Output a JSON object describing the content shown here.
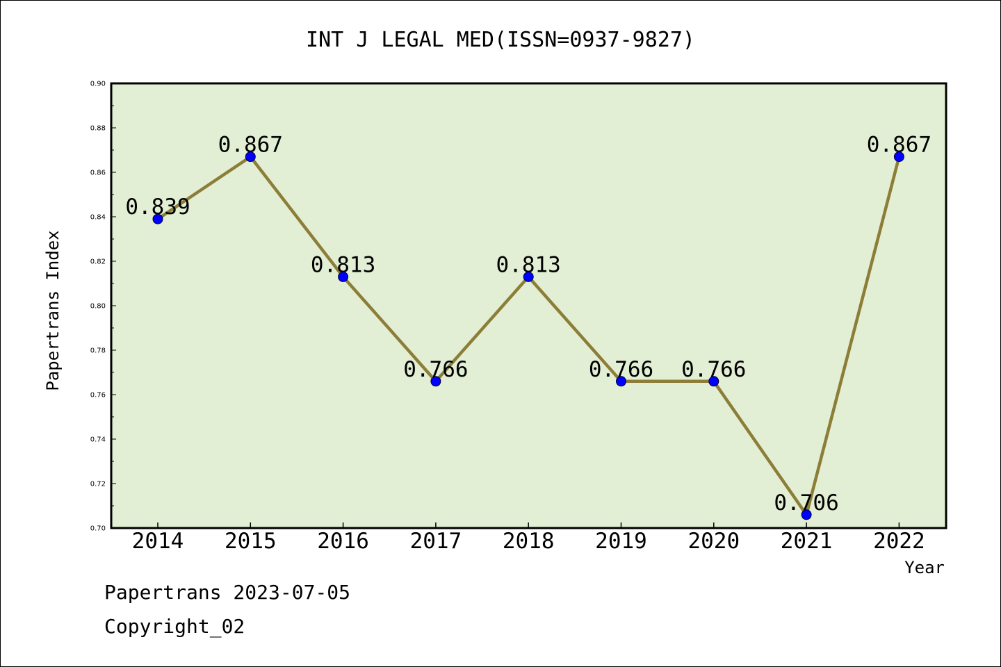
{
  "chart_data": {
    "type": "line",
    "title": "INT J LEGAL MED(ISSN=0937-9827)",
    "xlabel": "Year",
    "ylabel": "Papertrans Index",
    "categories": [
      "2014",
      "2015",
      "2016",
      "2017",
      "2018",
      "2019",
      "2020",
      "2021",
      "2022"
    ],
    "series": [
      {
        "values": [
          0.839,
          0.867,
          0.813,
          0.766,
          0.813,
          0.766,
          0.766,
          0.706,
          0.867
        ]
      }
    ],
    "data_labels": [
      "0.839",
      "0.867",
      "0.813",
      "0.766",
      "0.813",
      "0.766",
      "0.766",
      "0.706",
      "0.867"
    ],
    "ylim": [
      0.7,
      0.9
    ],
    "yticks": [
      "0.70",
      "0.72",
      "0.74",
      "0.76",
      "0.78",
      "0.80",
      "0.82",
      "0.84",
      "0.86",
      "0.88",
      "0.90"
    ],
    "grid": false,
    "legend": "none",
    "colors": {
      "plot_background": "#e2efd5",
      "line": "#8c7d37",
      "marker": "#0000ff"
    }
  },
  "footer": {
    "line1": "Papertrans 2023-07-05",
    "line2": "Copyright_02"
  }
}
